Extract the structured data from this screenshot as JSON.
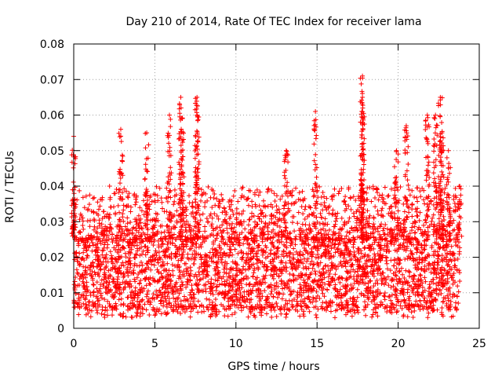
{
  "chart_data": {
    "type": "scatter",
    "title": "Day 210 of 2014, Rate Of TEC Index for receiver lama",
    "xlabel": "GPS time / hours",
    "ylabel": "ROTI / TECUs",
    "xlim": [
      0,
      25
    ],
    "ylim": [
      0,
      0.08
    ],
    "x_ticks": [
      0,
      5,
      10,
      15,
      20,
      25
    ],
    "x_tick_labels": [
      "0",
      "5",
      "10",
      "15",
      "20",
      "25"
    ],
    "y_ticks": [
      0,
      0.01,
      0.02,
      0.03,
      0.04,
      0.05,
      0.06,
      0.07,
      0.08
    ],
    "y_tick_labels": [
      "0",
      "0.01",
      "0.02",
      "0.03",
      "0.04",
      "0.05",
      "0.06",
      "0.07",
      "0.08"
    ],
    "grid": true,
    "marker": "+",
    "marker_color": "#ff0000",
    "series": [
      {
        "name": "ROTI",
        "x_range": [
          0,
          23.8
        ],
        "typical_range": [
          0.005,
          0.025
        ],
        "notable_points": [
          {
            "x": 0.0,
            "y": 0.054
          },
          {
            "x": 0.0,
            "y": 0.036
          },
          {
            "x": 2.9,
            "y": 0.056
          },
          {
            "x": 4.5,
            "y": 0.055
          },
          {
            "x": 5.9,
            "y": 0.06
          },
          {
            "x": 6.6,
            "y": 0.065
          },
          {
            "x": 6.7,
            "y": 0.059
          },
          {
            "x": 7.6,
            "y": 0.065
          },
          {
            "x": 7.6,
            "y": 0.06
          },
          {
            "x": 13.1,
            "y": 0.05
          },
          {
            "x": 14.9,
            "y": 0.061
          },
          {
            "x": 17.8,
            "y": 0.071
          },
          {
            "x": 17.8,
            "y": 0.065
          },
          {
            "x": 17.8,
            "y": 0.052
          },
          {
            "x": 19.9,
            "y": 0.05
          },
          {
            "x": 20.5,
            "y": 0.057
          },
          {
            "x": 21.8,
            "y": 0.06
          },
          {
            "x": 22.3,
            "y": 0.06
          },
          {
            "x": 22.6,
            "y": 0.065
          },
          {
            "x": 22.7,
            "y": 0.055
          },
          {
            "x": 23.1,
            "y": 0.05
          },
          {
            "x": 23.8,
            "y": 0.04
          }
        ]
      }
    ]
  }
}
